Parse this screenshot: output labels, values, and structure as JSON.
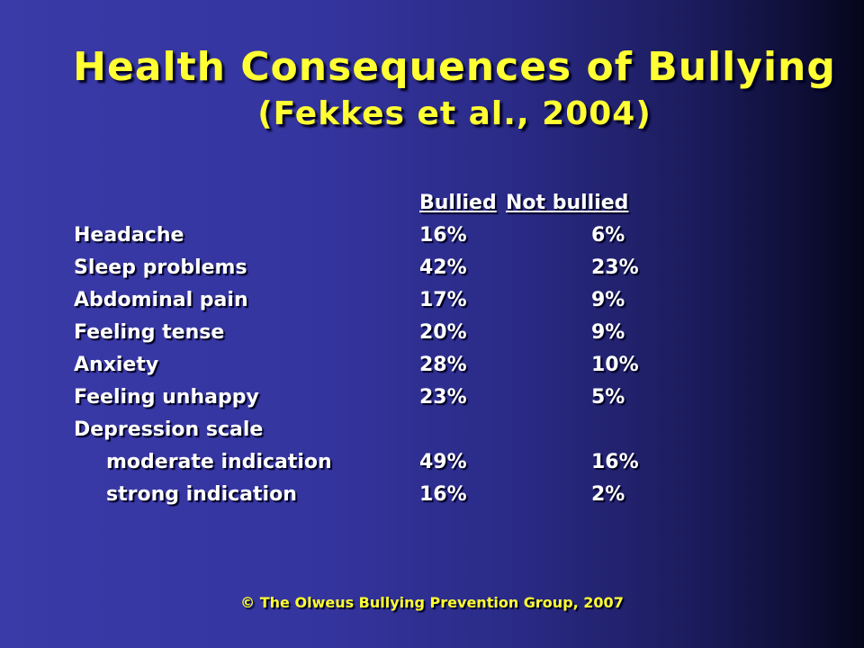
{
  "slide": {
    "title": "Health Consequences of Bullying",
    "subtitle": "(Fekkes et al., 2004)",
    "footer": "© The Olweus Bullying Prevention Group, 2007"
  },
  "table": {
    "headers": {
      "bullied": "Bullied",
      "not_bullied": "Not bullied"
    },
    "rows": [
      {
        "label": "Headache",
        "bullied": "16%",
        "not_bullied": "6%"
      },
      {
        "label": "Sleep problems",
        "bullied": "42%",
        "not_bullied": "23%"
      },
      {
        "label": "Abdominal pain",
        "bullied": "17%",
        "not_bullied": "9%"
      },
      {
        "label": "Feeling tense",
        "bullied": "20%",
        "not_bullied": "9%"
      },
      {
        "label": "Anxiety",
        "bullied": "28%",
        "not_bullied": "10%"
      },
      {
        "label": "Feeling unhappy",
        "bullied": "23%",
        "not_bullied": "5%"
      },
      {
        "label": "Depression scale",
        "bullied": "",
        "not_bullied": ""
      },
      {
        "label": "moderate indication",
        "bullied": "49%",
        "not_bullied": "16%"
      },
      {
        "label": "strong indication",
        "bullied": "16%",
        "not_bullied": "2%"
      }
    ]
  }
}
